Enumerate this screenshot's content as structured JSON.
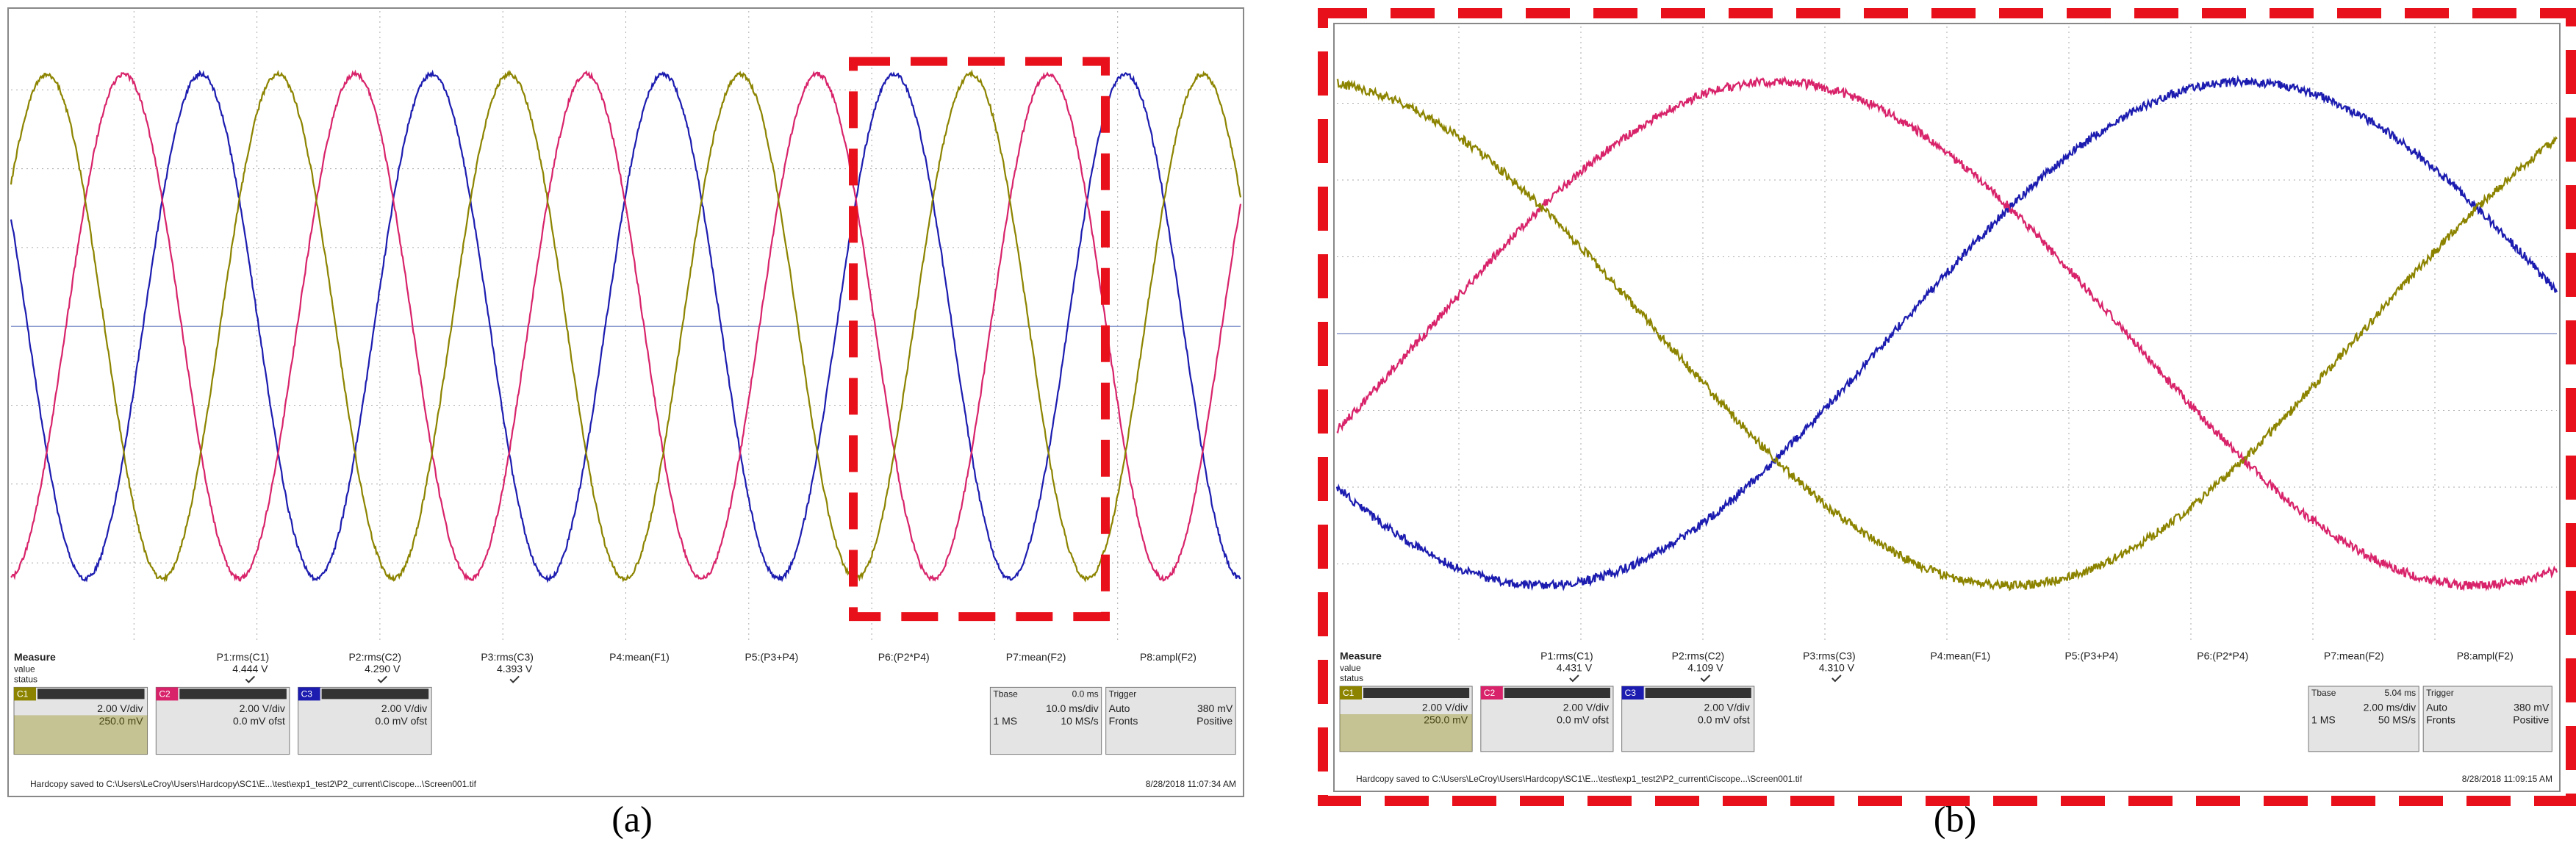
{
  "panels": [
    {
      "caption": "(a)",
      "measure": {
        "title": "Measure",
        "row_value": "value",
        "row_status": "status",
        "params": [
          {
            "name": "P1:rms(C1)",
            "value": "4.444 V"
          },
          {
            "name": "P2:rms(C2)",
            "value": "4.290 V"
          },
          {
            "name": "P3:rms(C3)",
            "value": "4.393 V"
          },
          {
            "name": "P4:mean(F1)"
          },
          {
            "name": "P5:(P3+P4)"
          },
          {
            "name": "P6:(P2*P4)"
          },
          {
            "name": "P7:mean(F2)"
          },
          {
            "name": "P8:ampl(F2)"
          }
        ]
      },
      "channels": [
        {
          "tag": "C1",
          "scale": "2.00 V/div",
          "offset": "250.0 mV"
        },
        {
          "tag": "C2",
          "scale": "2.00 V/div",
          "offset": "0.0 mV ofst"
        },
        {
          "tag": "C3",
          "scale": "2.00 V/div",
          "offset": "0.0 mV ofst"
        }
      ],
      "timebase": {
        "title": "Tbase",
        "delay": "0.0 ms",
        "div": "10.0 ms/div",
        "samples": "1 MS",
        "rate": "10 MS/s"
      },
      "trigger": {
        "title": "Trigger",
        "mode": "Auto",
        "level": "380 mV",
        "edge": "Fronts",
        "slope": "Positive"
      },
      "status": "Hardcopy saved to C:\\Users\\LeCroy\\Users\\Hardcopy\\SC1\\E...\\test\\exp1_test2\\P2_current\\Ciscope...\\Screen001.tif",
      "date": "8/28/2018 11:07:34 AM"
    },
    {
      "caption": "(b)",
      "measure": {
        "title": "Measure",
        "row_value": "value",
        "row_status": "status",
        "params": [
          {
            "name": "P1:rms(C1)",
            "value": "4.431 V"
          },
          {
            "name": "P2:rms(C2)",
            "value": "4.109 V"
          },
          {
            "name": "P3:rms(C3)",
            "value": "4.310 V"
          },
          {
            "name": "P4:mean(F1)"
          },
          {
            "name": "P5:(P3+P4)"
          },
          {
            "name": "P6:(P2*P4)"
          },
          {
            "name": "P7:mean(F2)"
          },
          {
            "name": "P8:ampl(F2)"
          }
        ]
      },
      "channels": [
        {
          "tag": "C1",
          "scale": "2.00 V/div",
          "offset": "250.0 mV"
        },
        {
          "tag": "C2",
          "scale": "2.00 V/div",
          "offset": "0.0 mV ofst"
        },
        {
          "tag": "C3",
          "scale": "2.00 V/div",
          "offset": "0.0 mV ofst"
        }
      ],
      "timebase": {
        "title": "Tbase",
        "delay": "5.04 ms",
        "div": "2.00 ms/div",
        "samples": "1 MS",
        "rate": "50 MS/s"
      },
      "trigger": {
        "title": "Trigger",
        "mode": "Auto",
        "level": "380 mV",
        "edge": "Fronts",
        "slope": "Positive"
      },
      "status": "Hardcopy saved to C:\\Users\\LeCroy\\Users\\Hardcopy\\SC1\\E...\\test\\exp1_test2\\P2_current\\Ciscope...\\Screen001.tif",
      "date": "8/28/2018 11:09:15 AM"
    }
  ]
}
